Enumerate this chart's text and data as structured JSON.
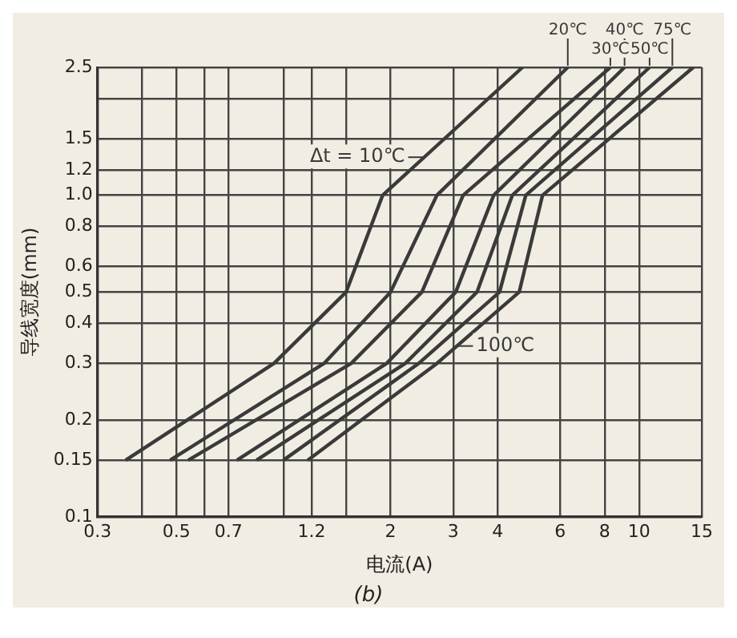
{
  "chart_data": {
    "type": "line",
    "xlabel": "电流(A)",
    "ylabel": "导线宽度(mm)",
    "annotations": [
      "(b)"
    ],
    "log": "xy",
    "grid": true,
    "legend": "top right",
    "marker": "none",
    "line_style": "solid",
    "xlim": [
      0.3,
      15
    ],
    "ylim": [
      0.1,
      2.5
    ],
    "xticks": [
      0.3,
      {
        "value": 0.4,
        "label": null
      },
      0.5,
      {
        "value": 0.6,
        "label": null
      },
      0.7,
      {
        "value": 1,
        "label": null
      },
      1.2,
      {
        "value": 1.5,
        "label": null
      },
      2,
      3,
      4,
      6,
      8,
      10,
      15
    ],
    "yticks": [
      0.1,
      0.15,
      0.2,
      0.3,
      0.4,
      0.5,
      0.6,
      0.8,
      {
        "value": 1,
        "label": "1.0"
      },
      1.2,
      1.5,
      {
        "value": 2,
        "label": null
      },
      2.5
    ],
    "series": [
      {
        "name": "Δt = 10℃",
        "color": "#3a3a3a",
        "x": [
          0.36,
          0.94,
          1.5,
          1.9,
          4.7
        ],
        "values": [
          0.15,
          0.3,
          0.5,
          1.0,
          2.5
        ]
      },
      {
        "name": "20℃",
        "color": "#3a3a3a",
        "x": [
          0.48,
          1.3,
          2.0,
          2.7,
          6.3
        ],
        "values": [
          0.15,
          0.3,
          0.5,
          1.0,
          2.5
        ]
      },
      {
        "name": "30℃",
        "color": "#3a3a3a",
        "x": [
          0.54,
          1.55,
          2.45,
          3.2,
          8.3
        ],
        "values": [
          0.15,
          0.3,
          0.5,
          1.0,
          2.5
        ]
      },
      {
        "name": "40℃",
        "color": "#3a3a3a",
        "x": [
          0.74,
          1.95,
          3.05,
          3.9,
          9.1
        ],
        "values": [
          0.15,
          0.3,
          0.5,
          1.0,
          2.5
        ]
      },
      {
        "name": "50℃",
        "color": "#3a3a3a",
        "x": [
          0.84,
          2.2,
          3.5,
          4.4,
          10.7
        ],
        "values": [
          0.15,
          0.3,
          0.5,
          1.0,
          2.5
        ]
      },
      {
        "name": "75℃",
        "color": "#3a3a3a",
        "x": [
          1.0,
          2.4,
          4.05,
          4.8,
          12.4
        ],
        "values": [
          0.15,
          0.3,
          0.5,
          1.0,
          2.5
        ]
      },
      {
        "name": "100℃",
        "color": "#3a3a3a",
        "x": [
          1.17,
          2.7,
          4.6,
          5.35,
          14.2
        ],
        "values": [
          0.15,
          0.3,
          0.5,
          1.0,
          2.5
        ]
      }
    ]
  }
}
